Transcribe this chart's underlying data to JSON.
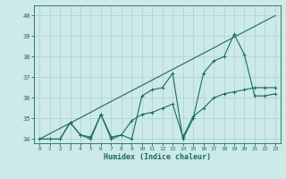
{
  "title": "",
  "xlabel": "Humidex (Indice chaleur)",
  "x": [
    0,
    1,
    2,
    3,
    4,
    5,
    6,
    7,
    8,
    9,
    10,
    11,
    12,
    13,
    14,
    15,
    16,
    17,
    18,
    19,
    20,
    21,
    22,
    23
  ],
  "line_diag": [
    34.0,
    34.26,
    34.52,
    34.78,
    35.04,
    35.3,
    35.57,
    35.83,
    36.09,
    36.35,
    36.61,
    36.87,
    37.13,
    37.39,
    37.65,
    37.91,
    38.17,
    38.43,
    38.7,
    38.96,
    39.22,
    39.48,
    39.74,
    40.0
  ],
  "line_volatile": [
    34,
    34,
    34,
    34.8,
    34.2,
    34.0,
    35.2,
    34.0,
    34.2,
    34.0,
    36.1,
    36.4,
    36.5,
    37.2,
    34.0,
    35.0,
    37.2,
    37.8,
    38.0,
    39.1,
    38.1,
    36.1,
    36.1,
    36.2
  ],
  "line_smooth": [
    34,
    34,
    34,
    34.8,
    34.2,
    34.1,
    35.2,
    34.1,
    34.2,
    34.9,
    35.2,
    35.3,
    35.5,
    35.7,
    34.1,
    35.1,
    35.5,
    36.0,
    36.2,
    36.3,
    36.4,
    36.5,
    36.5,
    36.5
  ],
  "line_color": "#1a6b60",
  "bg_color": "#cceae7",
  "grid_color": "#b0d0cc",
  "tick_color": "#1a6b60",
  "xlim": [
    -0.5,
    23.5
  ],
  "ylim": [
    33.8,
    40.5
  ],
  "yticks": [
    34,
    35,
    36,
    37,
    38,
    39,
    40
  ],
  "xticks": [
    0,
    1,
    2,
    3,
    4,
    5,
    6,
    7,
    8,
    9,
    10,
    11,
    12,
    13,
    14,
    15,
    16,
    17,
    18,
    19,
    20,
    21,
    22,
    23
  ],
  "figsize": [
    3.2,
    2.0
  ],
  "dpi": 100
}
